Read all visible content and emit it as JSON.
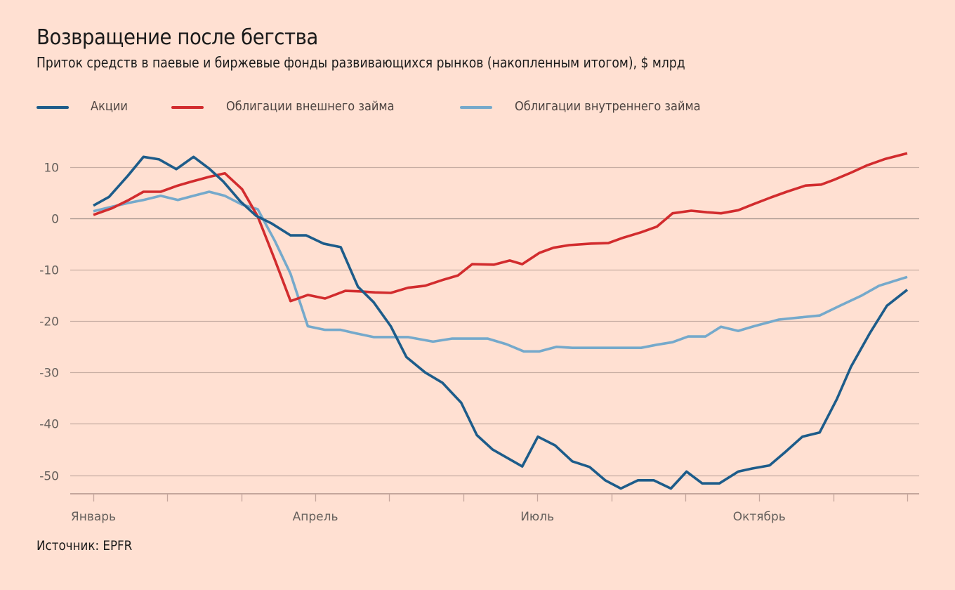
{
  "header": {
    "title": "Возвращение после бегства",
    "subtitle": "Приток средств в паевые и биржевые фонды развивающихся рынков (накопленным итогом), $ млрд"
  },
  "legend": [
    {
      "label": "Акции",
      "color": "#1d5c8a"
    },
    {
      "label": "Облигации внешнего займа",
      "color": "#d22c2e"
    },
    {
      "label": "Облигации внутреннего займа",
      "color": "#75a9cb"
    }
  ],
  "footer": {
    "source": "Источник: EPFR"
  },
  "chart_data": {
    "type": "line",
    "title": "Возвращение после бегства",
    "subtitle": "Приток средств в паевые и биржевые фонды развивающихся рынков (накопленным итогом), $ млрд",
    "xlabel": "",
    "ylabel": "$ млрд",
    "ylim": [
      -53.6,
      16
    ],
    "yticks": [
      10,
      0,
      -10,
      -20,
      -30,
      -40,
      -50
    ],
    "ytick_labels": [
      "10",
      "0",
      "-10",
      "-20",
      "-30",
      "-40",
      "-50"
    ],
    "xlim_weeks": [
      0,
      52
    ],
    "month_ticks_count": 12,
    "xtick_labels": [
      {
        "label": "Январь",
        "month": 0
      },
      {
        "label": "Апрель",
        "month": 3
      },
      {
        "label": "Июль",
        "month": 6
      },
      {
        "label": "Октябрь",
        "month": 9
      }
    ],
    "grid": true,
    "legend_position": "top",
    "series": [
      {
        "name": "Акции",
        "color": "#1d5c8a",
        "points": [
          [
            0.0,
            2.5
          ],
          [
            1.0,
            4.2
          ],
          [
            2.2,
            8.3
          ],
          [
            3.2,
            12.0
          ],
          [
            4.2,
            11.5
          ],
          [
            5.3,
            9.6
          ],
          [
            6.4,
            12.0
          ],
          [
            7.4,
            9.7
          ],
          [
            8.3,
            7.2
          ],
          [
            9.4,
            3.3
          ],
          [
            10.4,
            0.5
          ],
          [
            11.4,
            -1.0
          ],
          [
            12.6,
            -3.3
          ],
          [
            13.6,
            -3.3
          ],
          [
            14.7,
            -4.9
          ],
          [
            15.8,
            -5.6
          ],
          [
            16.9,
            -13.3
          ],
          [
            17.9,
            -16.3
          ],
          [
            19.0,
            -21.0
          ],
          [
            20.0,
            -27.0
          ],
          [
            21.2,
            -30.0
          ],
          [
            22.3,
            -32.0
          ],
          [
            23.5,
            -35.9
          ],
          [
            24.5,
            -42.2
          ],
          [
            25.5,
            -45.0
          ],
          [
            27.4,
            -48.3
          ],
          [
            28.4,
            -42.5
          ],
          [
            29.5,
            -44.2
          ],
          [
            30.6,
            -47.3
          ],
          [
            31.7,
            -48.4
          ],
          [
            32.7,
            -51.0
          ],
          [
            33.7,
            -52.6
          ],
          [
            34.8,
            -51.0
          ],
          [
            35.8,
            -51.0
          ],
          [
            36.9,
            -52.6
          ],
          [
            37.9,
            -49.3
          ],
          [
            38.9,
            -51.6
          ],
          [
            40.0,
            -51.6
          ],
          [
            41.2,
            -49.3
          ],
          [
            42.1,
            -48.7
          ],
          [
            43.2,
            -48.1
          ],
          [
            44.2,
            -45.5
          ],
          [
            45.3,
            -42.5
          ],
          [
            46.4,
            -41.7
          ],
          [
            47.5,
            -35.2
          ],
          [
            48.4,
            -28.9
          ],
          [
            49.6,
            -22.4
          ],
          [
            50.7,
            -17.0
          ],
          [
            52.0,
            -13.9
          ]
        ]
      },
      {
        "name": "Облигации внешнего займа",
        "color": "#d22c2e",
        "points": [
          [
            0.0,
            0.7
          ],
          [
            1.2,
            2.0
          ],
          [
            2.2,
            3.5
          ],
          [
            3.2,
            5.2
          ],
          [
            4.3,
            5.2
          ],
          [
            5.3,
            6.3
          ],
          [
            6.3,
            7.2
          ],
          [
            7.4,
            8.1
          ],
          [
            8.4,
            8.8
          ],
          [
            9.5,
            5.7
          ],
          [
            10.5,
            0.4
          ],
          [
            11.6,
            -8.1
          ],
          [
            12.6,
            -16.1
          ],
          [
            13.7,
            -14.9
          ],
          [
            14.8,
            -15.6
          ],
          [
            16.1,
            -14.1
          ],
          [
            17.0,
            -14.2
          ],
          [
            18.0,
            -14.4
          ],
          [
            19.0,
            -14.5
          ],
          [
            20.1,
            -13.5
          ],
          [
            21.2,
            -13.1
          ],
          [
            22.3,
            -12.0
          ],
          [
            23.3,
            -11.1
          ],
          [
            24.2,
            -8.9
          ],
          [
            25.6,
            -9.0
          ],
          [
            26.6,
            -8.2
          ],
          [
            27.4,
            -8.9
          ],
          [
            28.5,
            -6.7
          ],
          [
            29.4,
            -5.7
          ],
          [
            30.4,
            -5.2
          ],
          [
            31.8,
            -4.9
          ],
          [
            32.9,
            -4.8
          ],
          [
            33.8,
            -3.8
          ],
          [
            35.0,
            -2.7
          ],
          [
            36.0,
            -1.6
          ],
          [
            37.0,
            1.0
          ],
          [
            38.2,
            1.5
          ],
          [
            39.2,
            1.2
          ],
          [
            40.1,
            1.0
          ],
          [
            41.2,
            1.6
          ],
          [
            42.1,
            2.7
          ],
          [
            43.3,
            4.1
          ],
          [
            44.3,
            5.2
          ],
          [
            45.5,
            6.4
          ],
          [
            46.5,
            6.6
          ],
          [
            47.3,
            7.5
          ],
          [
            48.4,
            8.9
          ],
          [
            49.4,
            10.3
          ],
          [
            50.6,
            11.6
          ],
          [
            52.0,
            12.7
          ]
        ]
      },
      {
        "name": "Облигации внутреннего займа",
        "color": "#75a9cb",
        "points": [
          [
            0.0,
            1.4
          ],
          [
            1.2,
            2.3
          ],
          [
            2.2,
            3.0
          ],
          [
            3.2,
            3.6
          ],
          [
            4.3,
            4.4
          ],
          [
            5.4,
            3.6
          ],
          [
            6.4,
            4.4
          ],
          [
            7.4,
            5.2
          ],
          [
            8.4,
            4.4
          ],
          [
            9.5,
            2.7
          ],
          [
            10.5,
            1.8
          ],
          [
            11.6,
            -4.4
          ],
          [
            12.6,
            -10.8
          ],
          [
            13.7,
            -21.0
          ],
          [
            14.8,
            -21.7
          ],
          [
            15.8,
            -21.7
          ],
          [
            16.8,
            -22.4
          ],
          [
            17.9,
            -23.1
          ],
          [
            19.0,
            -23.1
          ],
          [
            20.1,
            -23.1
          ],
          [
            21.7,
            -24.0
          ],
          [
            22.9,
            -23.4
          ],
          [
            24.0,
            -23.4
          ],
          [
            25.2,
            -23.4
          ],
          [
            26.4,
            -24.5
          ],
          [
            27.5,
            -25.9
          ],
          [
            28.5,
            -25.9
          ],
          [
            29.6,
            -25.0
          ],
          [
            30.6,
            -25.2
          ],
          [
            32.7,
            -25.2
          ],
          [
            35.0,
            -25.2
          ],
          [
            36.0,
            -24.6
          ],
          [
            37.0,
            -24.1
          ],
          [
            38.0,
            -23.0
          ],
          [
            39.1,
            -23.0
          ],
          [
            40.1,
            -21.1
          ],
          [
            41.2,
            -21.9
          ],
          [
            42.2,
            -21.0
          ],
          [
            43.8,
            -19.7
          ],
          [
            45.1,
            -19.3
          ],
          [
            46.4,
            -18.9
          ],
          [
            47.7,
            -17.0
          ],
          [
            49.1,
            -15.0
          ],
          [
            50.2,
            -13.1
          ],
          [
            52.0,
            -11.4
          ]
        ]
      }
    ]
  }
}
